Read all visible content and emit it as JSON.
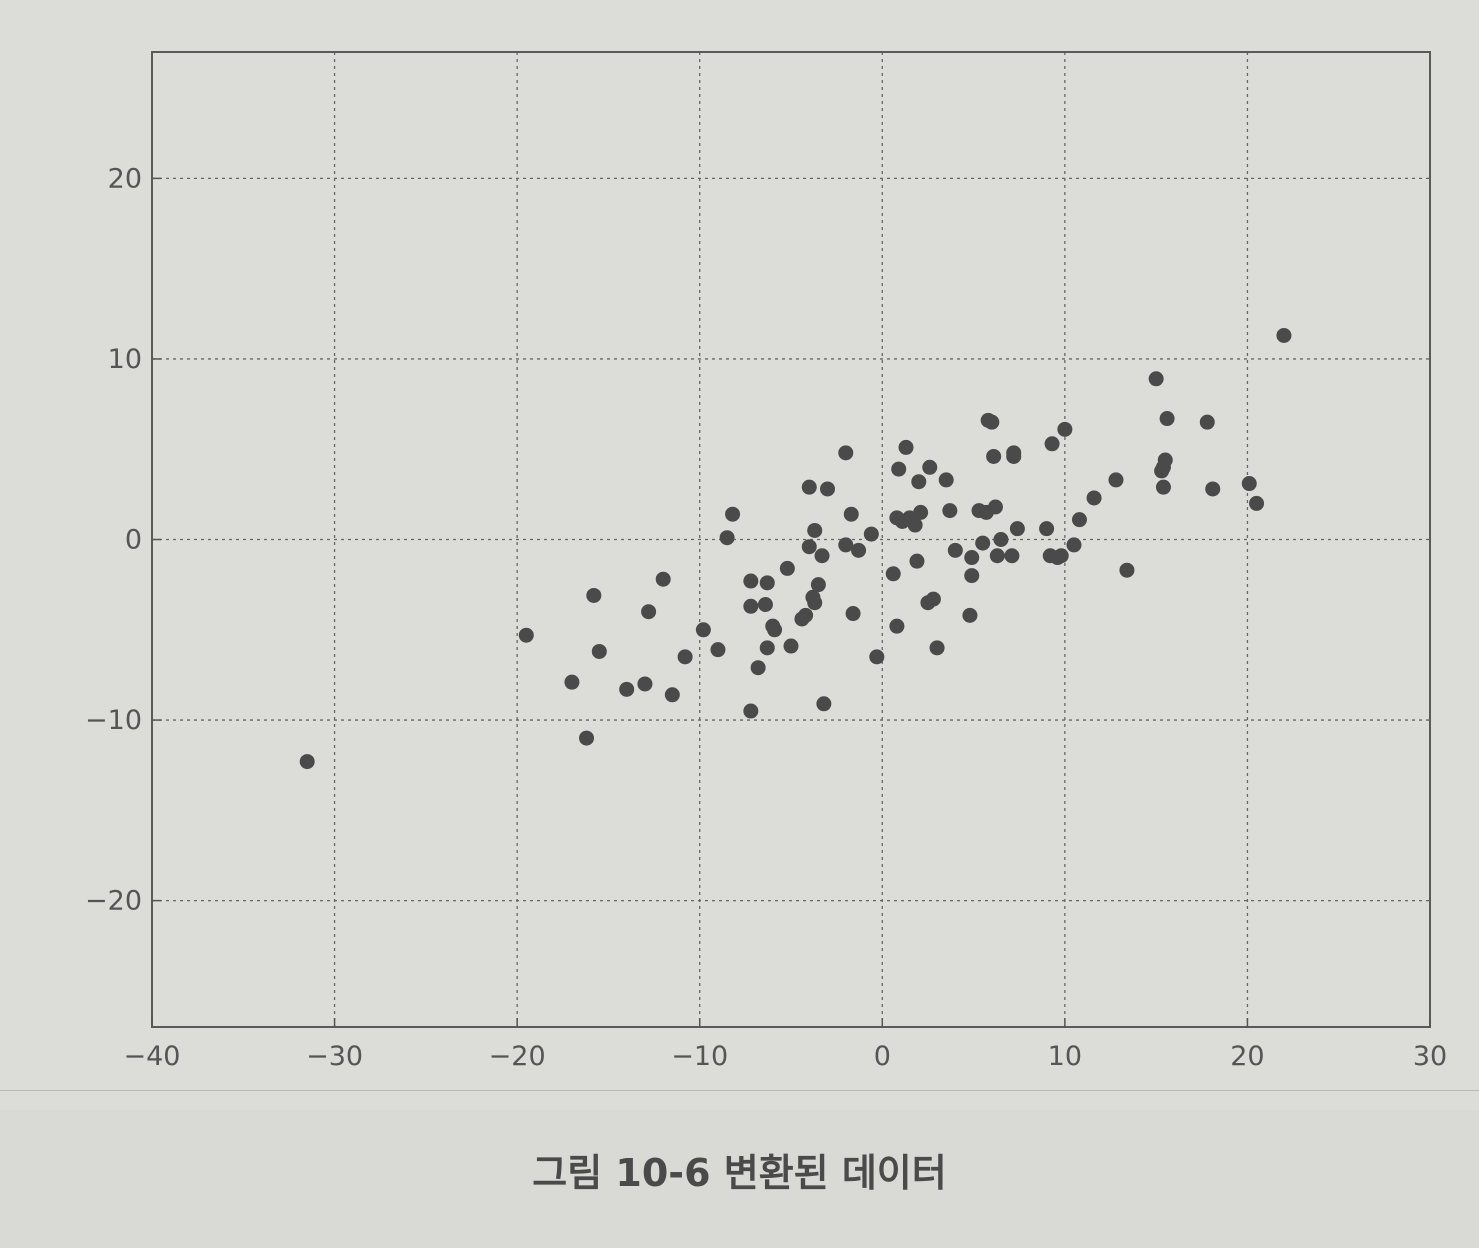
{
  "chart_data": {
    "type": "scatter",
    "title": "",
    "xlabel": "",
    "ylabel": "",
    "xlim": [
      -40,
      30
    ],
    "ylim": [
      -27,
      27
    ],
    "xticks": [
      -40,
      -30,
      -20,
      -10,
      0,
      10,
      20,
      30
    ],
    "yticks": [
      20,
      10,
      0,
      -10,
      -20
    ],
    "xtick_labels": [
      "−40",
      "−30",
      "−20",
      "−10",
      "0",
      "10",
      "20",
      "30"
    ],
    "ytick_labels": [
      "20",
      "10",
      "0",
      "−10",
      "−20"
    ],
    "grid": true,
    "marker_color": "#4a4a4a",
    "points": [
      [
        -31.5,
        -12.3
      ],
      [
        -19.5,
        -5.3
      ],
      [
        -17.0,
        -7.9
      ],
      [
        -16.2,
        -11.0
      ],
      [
        -15.8,
        -3.1
      ],
      [
        -15.5,
        -6.2
      ],
      [
        -14.0,
        -8.3
      ],
      [
        -13.0,
        -8.0
      ],
      [
        -12.8,
        -4.0
      ],
      [
        -12.0,
        -2.2
      ],
      [
        -11.5,
        -8.6
      ],
      [
        -10.8,
        -6.5
      ],
      [
        -9.8,
        -5.0
      ],
      [
        -9.0,
        -6.1
      ],
      [
        -8.5,
        0.1
      ],
      [
        -8.2,
        1.4
      ],
      [
        -7.2,
        -2.3
      ],
      [
        -7.2,
        -3.7
      ],
      [
        -7.2,
        -9.5
      ],
      [
        -6.8,
        -7.1
      ],
      [
        -6.4,
        -3.6
      ],
      [
        -6.3,
        -2.4
      ],
      [
        -6.3,
        -6.0
      ],
      [
        -6.0,
        -4.8
      ],
      [
        -5.9,
        -5.0
      ],
      [
        -5.2,
        -1.6
      ],
      [
        -5.0,
        -5.9
      ],
      [
        -4.4,
        -4.4
      ],
      [
        -4.2,
        -4.2
      ],
      [
        -4.0,
        -0.4
      ],
      [
        -4.0,
        2.9
      ],
      [
        -3.8,
        -3.2
      ],
      [
        -3.7,
        -3.5
      ],
      [
        -3.7,
        0.5
      ],
      [
        -3.5,
        -2.5
      ],
      [
        -3.3,
        -0.9
      ],
      [
        -3.2,
        -9.1
      ],
      [
        -3.0,
        2.8
      ],
      [
        -2.0,
        -0.3
      ],
      [
        -2.0,
        4.8
      ],
      [
        -1.7,
        1.4
      ],
      [
        -1.6,
        -4.1
      ],
      [
        -1.3,
        -0.6
      ],
      [
        -0.6,
        0.3
      ],
      [
        -0.3,
        -6.5
      ],
      [
        0.6,
        -1.9
      ],
      [
        0.8,
        1.2
      ],
      [
        0.8,
        -4.8
      ],
      [
        0.9,
        3.9
      ],
      [
        1.1,
        1.0
      ],
      [
        1.3,
        5.1
      ],
      [
        1.5,
        1.2
      ],
      [
        1.8,
        0.8
      ],
      [
        1.9,
        -1.2
      ],
      [
        2.0,
        3.2
      ],
      [
        2.1,
        1.5
      ],
      [
        2.5,
        -3.5
      ],
      [
        2.6,
        4.0
      ],
      [
        2.8,
        -3.3
      ],
      [
        3.0,
        -6.0
      ],
      [
        3.5,
        3.3
      ],
      [
        3.7,
        1.6
      ],
      [
        4.0,
        -0.6
      ],
      [
        4.8,
        -4.2
      ],
      [
        4.9,
        -2.0
      ],
      [
        4.9,
        -1.0
      ],
      [
        5.3,
        1.6
      ],
      [
        5.5,
        -0.2
      ],
      [
        5.7,
        1.5
      ],
      [
        5.8,
        6.6
      ],
      [
        6.0,
        6.5
      ],
      [
        6.1,
        4.6
      ],
      [
        6.2,
        1.8
      ],
      [
        6.3,
        -0.9
      ],
      [
        6.5,
        0.0
      ],
      [
        7.1,
        -0.9
      ],
      [
        7.2,
        4.8
      ],
      [
        7.2,
        4.6
      ],
      [
        7.4,
        0.6
      ],
      [
        9.0,
        0.6
      ],
      [
        9.2,
        -0.9
      ],
      [
        9.3,
        5.3
      ],
      [
        9.6,
        -1.0
      ],
      [
        9.8,
        -0.9
      ],
      [
        10.0,
        6.1
      ],
      [
        10.5,
        -0.3
      ],
      [
        10.8,
        1.1
      ],
      [
        11.6,
        2.3
      ],
      [
        12.8,
        3.3
      ],
      [
        13.4,
        -1.7
      ],
      [
        15.0,
        8.9
      ],
      [
        15.3,
        3.8
      ],
      [
        15.4,
        2.9
      ],
      [
        15.4,
        4.0
      ],
      [
        15.5,
        4.4
      ],
      [
        15.6,
        6.7
      ],
      [
        17.8,
        6.5
      ],
      [
        18.1,
        2.8
      ],
      [
        20.1,
        3.1
      ],
      [
        20.5,
        2.0
      ],
      [
        22.0,
        11.3
      ]
    ]
  },
  "caption": "그림 10-6 변환된 데이터"
}
